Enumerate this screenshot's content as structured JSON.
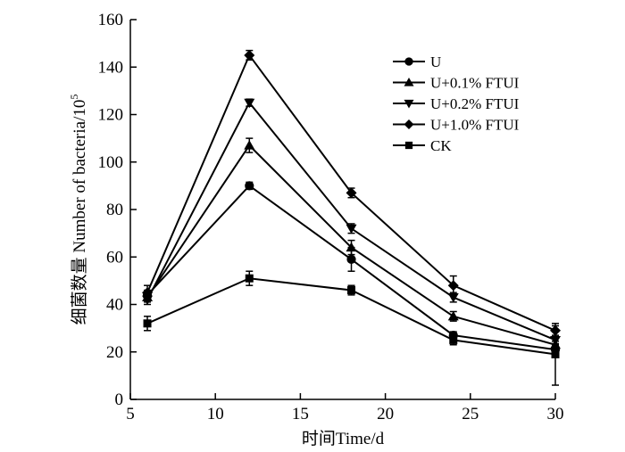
{
  "chart_data": {
    "type": "line",
    "title": "",
    "xlabel": "时间Time/d",
    "ylabel_main": "细菌数量 Number of bacteria/10",
    "ylabel_sup": "5",
    "xlim": [
      5,
      30
    ],
    "ylim": [
      0,
      160
    ],
    "xticks": [
      5,
      10,
      15,
      20,
      25,
      30
    ],
    "yticks": [
      0,
      20,
      40,
      60,
      80,
      100,
      120,
      140,
      160
    ],
    "x": [
      6,
      12,
      18,
      24,
      30
    ],
    "grid": false,
    "legend_position": "top-right",
    "series": [
      {
        "name": "U",
        "marker": "circle",
        "values": [
          44,
          90,
          59,
          27,
          21
        ],
        "errors": [
          2,
          1.5,
          5,
          1.5,
          2
        ]
      },
      {
        "name": "U+0.1% FTUI",
        "marker": "triangle-up",
        "values": [
          43,
          107,
          64,
          35,
          23
        ],
        "errors": [
          2,
          3,
          3,
          2,
          1.5
        ]
      },
      {
        "name": "U+0.2% FTUI",
        "marker": "triangle-down",
        "values": [
          42,
          125,
          72,
          43,
          25
        ],
        "errors": [
          2,
          1.5,
          2,
          2,
          1.5
        ]
      },
      {
        "name": "U+1.0% FTUI",
        "marker": "diamond",
        "values": [
          45,
          145,
          87,
          48,
          29
        ],
        "errors": [
          3,
          2,
          2,
          4,
          2
        ]
      },
      {
        "name": "CK",
        "marker": "square",
        "values": [
          32,
          51,
          46,
          25,
          19
        ],
        "errors": [
          3,
          3,
          2,
          2,
          13
        ]
      }
    ]
  }
}
